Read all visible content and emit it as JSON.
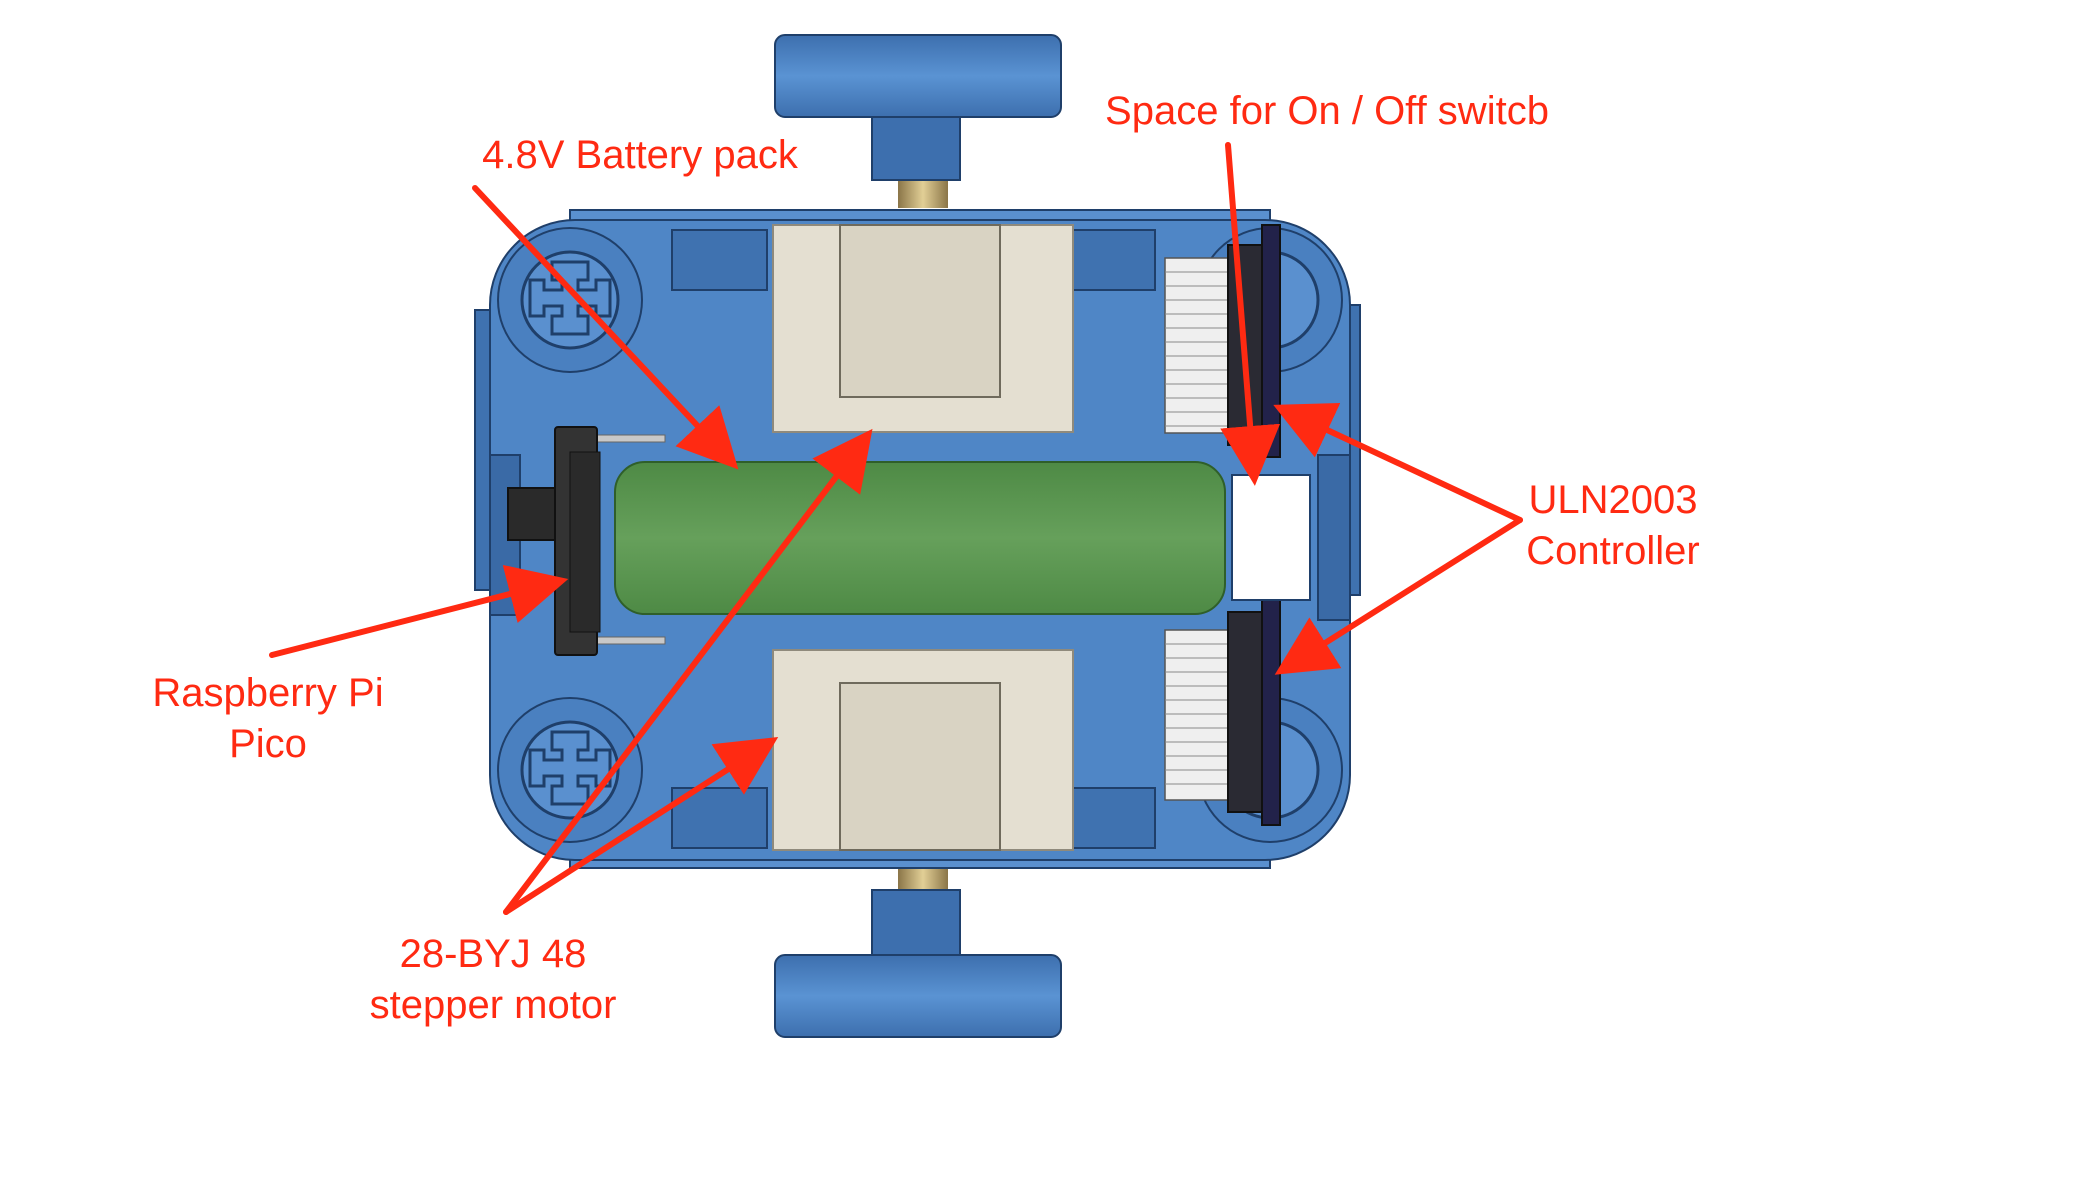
{
  "labels": {
    "battery": "4.8V Battery pack",
    "switch": "Space for On / Off switcb",
    "controller_line1": "ULN2003",
    "controller_line2": "Controller",
    "pico_line1": "Raspberry Pi",
    "pico_line2": "Pico",
    "motor_line1": "28-BYJ 48",
    "motor_line2": "stepper motor"
  },
  "colors": {
    "annotation": "#ff2a12",
    "chassis": "#4f86c6",
    "chassis_dark": "#2f5f9a",
    "battery": "#5b9450",
    "motor": "#e4dfd1",
    "controller": "#2a2a33",
    "header_pins": "#e8e8e8",
    "axle": "#b8a070"
  }
}
